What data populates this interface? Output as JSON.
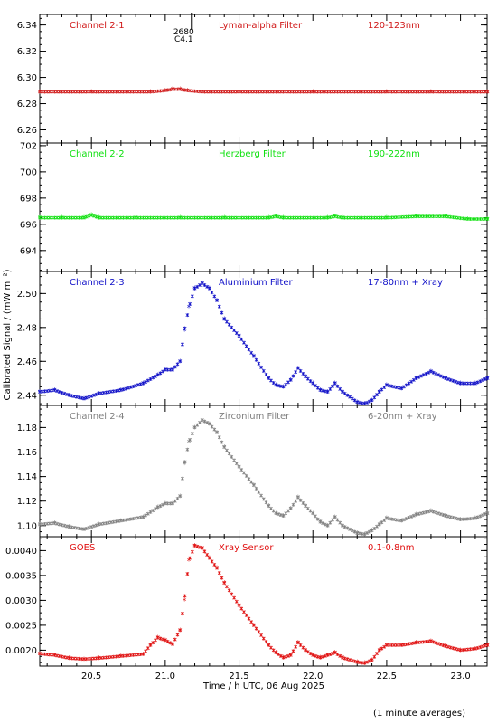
{
  "figure": {
    "ylabel": "Calibrated Signal / (mW m⁻²)",
    "xlabel": "Time / h UTC, 06 Aug 2025",
    "footnote": "(1 minute averages)",
    "colors": {
      "ch21": "#d01818",
      "ch22": "#10e010",
      "ch23": "#1010c8",
      "ch24": "#808080",
      "goes": "#e01010",
      "axis": "#000000"
    },
    "flare_marker": {
      "x": 21.18,
      "label1": "2680",
      "label2": "C4.1"
    }
  },
  "chart_data": [
    {
      "type": "scatter",
      "channel": "Channel 2-1",
      "filter": "Lyman-alpha Filter",
      "band": "120-123nm",
      "color": "#d01818",
      "xlim": [
        20.15,
        23.18
      ],
      "ylim": [
        6.25,
        6.348
      ],
      "yticks": [
        6.26,
        6.28,
        6.3,
        6.32,
        6.34
      ],
      "ytick_labels": [
        "6.26",
        "6.28",
        "6.30",
        "6.32",
        "6.34"
      ],
      "x": [
        20.15,
        20.5,
        20.9,
        21.0,
        21.05,
        21.1,
        21.15,
        21.25,
        21.5,
        22.0,
        22.5,
        22.8,
        23.18
      ],
      "values": [
        6.289,
        6.289,
        6.289,
        6.29,
        6.291,
        6.291,
        6.29,
        6.289,
        6.289,
        6.289,
        6.289,
        6.289,
        6.289
      ]
    },
    {
      "type": "scatter",
      "channel": "Channel 2-2",
      "filter": "Herzberg Filter",
      "band": "190-222nm",
      "color": "#10e010",
      "xlim": [
        20.15,
        23.18
      ],
      "ylim": [
        692.4,
        702.2
      ],
      "yticks": [
        694,
        696,
        698,
        700,
        702
      ],
      "ytick_labels": [
        "694",
        "696",
        "698",
        "700",
        "702"
      ],
      "x": [
        20.15,
        20.3,
        20.45,
        20.5,
        20.55,
        20.8,
        21.1,
        21.4,
        21.7,
        21.75,
        21.8,
        22.1,
        22.15,
        22.2,
        22.5,
        22.7,
        22.9,
        23.05,
        23.18
      ],
      "values": [
        696.5,
        696.5,
        696.5,
        696.7,
        696.5,
        696.5,
        696.5,
        696.5,
        696.5,
        696.6,
        696.5,
        696.5,
        696.6,
        696.5,
        696.5,
        696.6,
        696.6,
        696.4,
        696.4
      ]
    },
    {
      "type": "scatter",
      "channel": "Channel 2-3",
      "filter": "Aluminium Filter",
      "band": "17-80nm + Xray",
      "color": "#1010c8",
      "xlim": [
        20.15,
        23.18
      ],
      "ylim": [
        2.434,
        2.513
      ],
      "yticks": [
        2.44,
        2.46,
        2.48,
        2.5
      ],
      "ytick_labels": [
        "2.44",
        "2.46",
        "2.48",
        "2.50"
      ],
      "x": [
        20.15,
        20.25,
        20.35,
        20.45,
        20.55,
        20.7,
        20.85,
        20.95,
        21.0,
        21.05,
        21.1,
        21.13,
        21.16,
        21.2,
        21.25,
        21.3,
        21.35,
        21.4,
        21.5,
        21.6,
        21.7,
        21.75,
        21.8,
        21.85,
        21.9,
        21.95,
        22.0,
        22.05,
        22.1,
        22.15,
        22.2,
        22.3,
        22.35,
        22.4,
        22.45,
        22.5,
        22.6,
        22.7,
        22.8,
        22.9,
        23.0,
        23.1,
        23.18
      ],
      "values": [
        2.442,
        2.443,
        2.44,
        2.438,
        2.441,
        2.443,
        2.447,
        2.452,
        2.455,
        2.455,
        2.46,
        2.478,
        2.492,
        2.503,
        2.506,
        2.503,
        2.496,
        2.485,
        2.475,
        2.463,
        2.45,
        2.446,
        2.445,
        2.449,
        2.456,
        2.451,
        2.447,
        2.443,
        2.442,
        2.447,
        2.442,
        2.436,
        2.435,
        2.437,
        2.442,
        2.446,
        2.444,
        2.45,
        2.454,
        2.45,
        2.447,
        2.447,
        2.45
      ]
    },
    {
      "type": "scatter",
      "channel": "Channel 2-4",
      "filter": "Zirconium Filter",
      "band": "6-20nm + Xray",
      "color": "#808080",
      "xlim": [
        20.15,
        23.18
      ],
      "ylim": [
        1.091,
        1.198
      ],
      "yticks": [
        1.1,
        1.12,
        1.14,
        1.16,
        1.18
      ],
      "ytick_labels": [
        "1.10",
        "1.12",
        "1.14",
        "1.16",
        "1.18"
      ],
      "x": [
        20.15,
        20.25,
        20.35,
        20.45,
        20.55,
        20.7,
        20.85,
        20.95,
        21.0,
        21.05,
        21.1,
        21.13,
        21.16,
        21.2,
        21.25,
        21.3,
        21.35,
        21.4,
        21.5,
        21.6,
        21.7,
        21.75,
        21.8,
        21.85,
        21.9,
        21.95,
        22.0,
        22.05,
        22.1,
        22.15,
        22.2,
        22.3,
        22.35,
        22.4,
        22.45,
        22.5,
        22.6,
        22.7,
        22.8,
        22.9,
        23.0,
        23.1,
        23.18
      ],
      "values": [
        1.101,
        1.102,
        1.099,
        1.097,
        1.101,
        1.104,
        1.107,
        1.115,
        1.118,
        1.118,
        1.124,
        1.15,
        1.168,
        1.18,
        1.186,
        1.183,
        1.176,
        1.164,
        1.148,
        1.133,
        1.116,
        1.11,
        1.108,
        1.114,
        1.123,
        1.116,
        1.11,
        1.103,
        1.1,
        1.107,
        1.1,
        1.094,
        1.093,
        1.096,
        1.101,
        1.106,
        1.104,
        1.109,
        1.112,
        1.108,
        1.105,
        1.106,
        1.11
      ]
    },
    {
      "type": "scatter",
      "channel": "GOES",
      "filter": "Xray Sensor",
      "band": "0.1-0.8nm",
      "color": "#e01010",
      "xlim": [
        20.15,
        23.18
      ],
      "ylim": [
        0.00168,
        0.00428
      ],
      "yticks": [
        0.002,
        0.0025,
        0.003,
        0.0035,
        0.004
      ],
      "ytick_labels": [
        "0.0020",
        "0.0025",
        "0.0030",
        "0.0035",
        "0.0040"
      ],
      "x": [
        20.15,
        20.25,
        20.35,
        20.45,
        20.55,
        20.7,
        20.85,
        20.9,
        20.95,
        21.0,
        21.05,
        21.1,
        21.13,
        21.16,
        21.2,
        21.25,
        21.3,
        21.35,
        21.4,
        21.5,
        21.6,
        21.7,
        21.75,
        21.8,
        21.85,
        21.9,
        21.95,
        22.0,
        22.05,
        22.1,
        22.15,
        22.2,
        22.3,
        22.35,
        22.4,
        22.45,
        22.5,
        22.6,
        22.7,
        22.8,
        22.9,
        23.0,
        23.1,
        23.18
      ],
      "values": [
        0.00193,
        0.0019,
        0.00184,
        0.00182,
        0.00184,
        0.00188,
        0.00192,
        0.0021,
        0.00225,
        0.0022,
        0.00212,
        0.0024,
        0.003,
        0.0038,
        0.0041,
        0.00405,
        0.00385,
        0.00365,
        0.00335,
        0.0029,
        0.0025,
        0.0021,
        0.00195,
        0.00185,
        0.0019,
        0.00215,
        0.002,
        0.0019,
        0.00185,
        0.0019,
        0.00195,
        0.00185,
        0.00176,
        0.00174,
        0.0018,
        0.002,
        0.0021,
        0.0021,
        0.00215,
        0.00218,
        0.00208,
        0.002,
        0.00203,
        0.0021
      ]
    }
  ],
  "xaxis": {
    "ticks": [
      20.5,
      21.0,
      21.5,
      22.0,
      22.5,
      23.0
    ],
    "tick_labels": [
      "20.5",
      "21.0",
      "21.5",
      "22.0",
      "22.5",
      "23.0"
    ]
  }
}
